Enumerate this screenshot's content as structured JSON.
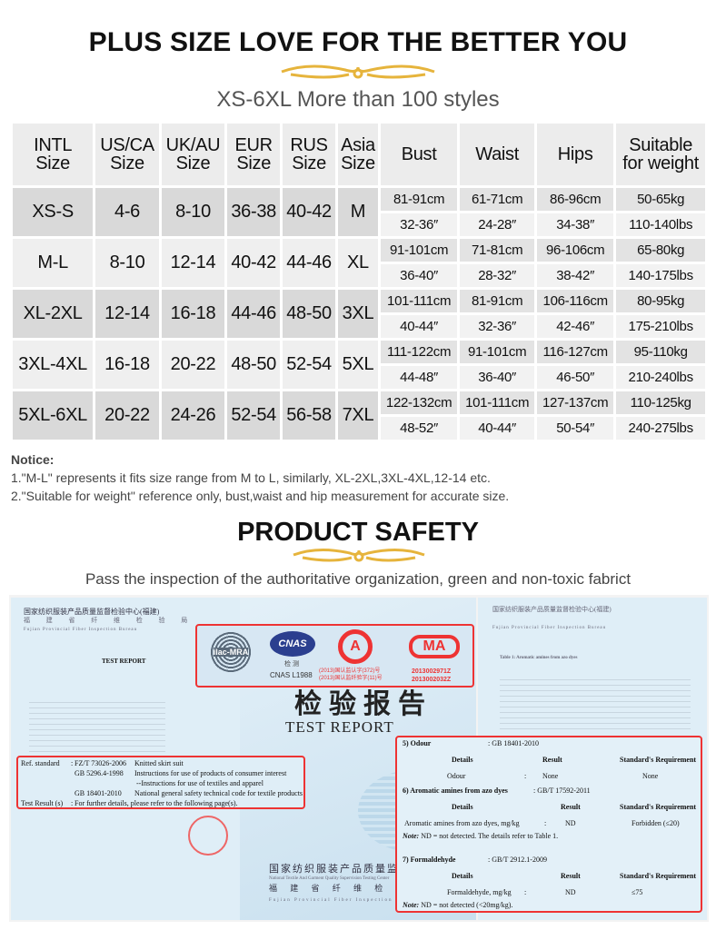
{
  "header": {
    "title": "PLUS SIZE LOVE FOR THE BETTER YOU",
    "subtitle": "XS-6XL More than 100 styles",
    "ornament_color": "#e6b43c"
  },
  "size_table": {
    "headers": [
      [
        "INTL",
        "Size"
      ],
      [
        "US/CA",
        "Size"
      ],
      [
        "UK/AU",
        "Size"
      ],
      [
        "EUR",
        "Size"
      ],
      [
        "RUS",
        "Size"
      ],
      [
        "Asia",
        "Size"
      ],
      [
        "Bust",
        ""
      ],
      [
        "Waist",
        ""
      ],
      [
        "Hips",
        ""
      ],
      [
        "Suitable",
        "for weight"
      ]
    ],
    "rows": [
      {
        "intl": "XS-S",
        "us": "4-6",
        "uk": "8-10",
        "eur": "36-38",
        "rus": "40-42",
        "asia": "M",
        "bust_cm": "81-91cm",
        "waist_cm": "61-71cm",
        "hips_cm": "86-96cm",
        "weight_kg": "50-65kg",
        "bust_in": "32-36″",
        "waist_in": "24-28″",
        "hips_in": "34-38″",
        "weight_lbs": "110-140lbs"
      },
      {
        "intl": "M-L",
        "us": "8-10",
        "uk": "12-14",
        "eur": "40-42",
        "rus": "44-46",
        "asia": "XL",
        "bust_cm": "91-101cm",
        "waist_cm": "71-81cm",
        "hips_cm": "96-106cm",
        "weight_kg": "65-80kg",
        "bust_in": "36-40″",
        "waist_in": "28-32″",
        "hips_in": "38-42″",
        "weight_lbs": "140-175lbs"
      },
      {
        "intl": "XL-2XL",
        "us": "12-14",
        "uk": "16-18",
        "eur": "44-46",
        "rus": "48-50",
        "asia": "3XL",
        "bust_cm": "101-111cm",
        "waist_cm": "81-91cm",
        "hips_cm": "106-116cm",
        "weight_kg": "80-95kg",
        "bust_in": "40-44″",
        "waist_in": "32-36″",
        "hips_in": "42-46″",
        "weight_lbs": "175-210lbs"
      },
      {
        "intl": "3XL-4XL",
        "us": "16-18",
        "uk": "20-22",
        "eur": "48-50",
        "rus": "52-54",
        "asia": "5XL",
        "bust_cm": "111-122cm",
        "waist_cm": "91-101cm",
        "hips_cm": "116-127cm",
        "weight_kg": "95-110kg",
        "bust_in": "44-48″",
        "waist_in": "36-40″",
        "hips_in": "46-50″",
        "weight_lbs": "210-240lbs"
      },
      {
        "intl": "5XL-6XL",
        "us": "20-22",
        "uk": "24-26",
        "eur": "52-54",
        "rus": "56-58",
        "asia": "7XL",
        "bust_cm": "122-132cm",
        "waist_cm": "101-111cm",
        "hips_cm": "127-137cm",
        "weight_kg": "110-125kg",
        "bust_in": "48-52″",
        "waist_in": "40-44″",
        "hips_in": "50-54″",
        "weight_lbs": "240-275lbs"
      }
    ]
  },
  "notice": {
    "heading": "Notice:",
    "items": [
      "1.\"M-L\" represents it fits size range from M to L,  similarly, XL-2XL,3XL-4XL,12-14 etc.",
      "2.\"Suitable for weight\" reference only, bust,waist and hip measurement for accurate size."
    ]
  },
  "safety": {
    "title": "PRODUCT SAFETY",
    "subtitle": "Pass  the inspection of the authoritative organization, green and non-toxic fabrict"
  },
  "report": {
    "left": {
      "org_cn": "国家纺织服装产品质量监督检验中心(福建)",
      "bureau_cn": "福 建 省 纤 维 检 验 局",
      "bureau_en": "Fujian Provincial Fiber Inspection Bureau",
      "heading": "TEST REPORT",
      "ref_label": "Ref. standard",
      "standards": [
        [
          "FZ/T 73026-2006",
          "Knitted skirt suit"
        ],
        [
          "GB 5296.4-1998",
          "Instructions for use of products of consumer interest"
        ],
        [
          "",
          "--Instructions for use of textiles and apparel"
        ],
        [
          "GB 18401-2010",
          "National general safety technical code for textile products"
        ]
      ],
      "result_label": "Test Result (s)",
      "result_text": "For further details, please refer to the following page(s)."
    },
    "cover": {
      "logos": [
        "ilac-MRA",
        "CNAS",
        "CAL",
        "MA"
      ],
      "cnas_cn": "检 测",
      "cnas_id": "CNAS  L1988",
      "cal_lines": [
        "(2013)国认监认字(372)号",
        "(2013)国认监纤验字(11)号"
      ],
      "ma_ids": [
        "2013002971Z",
        "2013002032Z"
      ],
      "title_cn": "检验报告",
      "title_en": "TEST REPORT",
      "footer_cn": "国家纺织服装产品质量监督检验中心",
      "footer_en": "National Textile And Garment Quality Supervision Testing Center",
      "footer_cn2": "福 建 省 纤 维 检 验 局",
      "footer_en2": "Fujian Provincial Fiber Inspection Bureau"
    },
    "right": {
      "table_title": "Table 1:   Aromatic amines from azo dyes",
      "s5": {
        "title": "5) Odour",
        "std": ":   GB 18401-2010",
        "cols": [
          "Details",
          "Result",
          "Standard's Requirement"
        ],
        "row": [
          "Odour",
          ":",
          "None",
          "None"
        ]
      },
      "s6": {
        "title": "6) Aromatic amines from azo dyes",
        "std": ":   GB/T 17592-2011",
        "cols": [
          "Details",
          "Result",
          "Standard's Requirement"
        ],
        "row": [
          "Aromatic amines from azo dyes, mg/kg",
          ":",
          "ND",
          "Forbidden (≤20)"
        ],
        "note_label": "Note:",
        "note": " ND = not detected. The details refer to Table 1."
      },
      "s7": {
        "title": "7) Formaldehyde",
        "std": ":   GB/T 2912.1-2009",
        "cols": [
          "Details",
          "Result",
          "Standard's Requirement"
        ],
        "row": [
          "Formaldehyde, mg/kg",
          ":",
          "ND",
          "≤75"
        ],
        "note_label": "Note:",
        "note": " ND = not detected (<20mg/kg)."
      }
    },
    "highlight_color": "#e33333"
  }
}
